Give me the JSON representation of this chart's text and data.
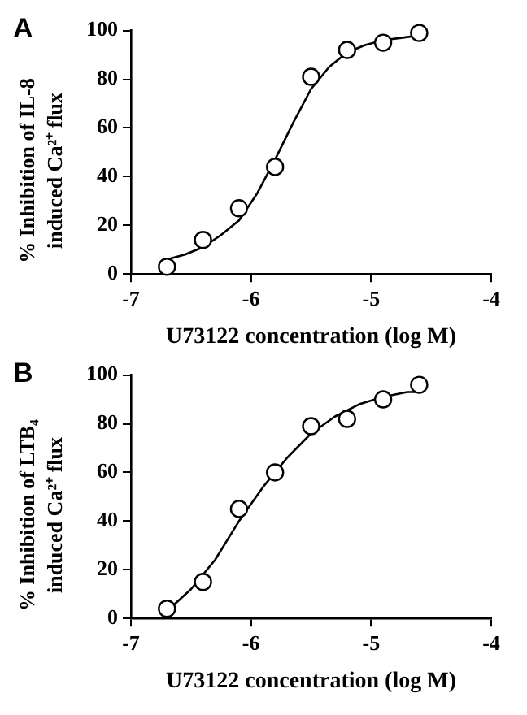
{
  "chart_data": [
    {
      "type": "scatter",
      "title": "A",
      "xlabel": "U73122 concentration (log M)",
      "ylabel": "% Inhibition of IL-8 induced Ca²⁺ flux",
      "xlim": [
        -7,
        -4
      ],
      "xticks": [
        -7,
        -6,
        -5,
        -4
      ],
      "ylim": [
        0,
        100
      ],
      "yticks": [
        0,
        20,
        40,
        60,
        80,
        100
      ],
      "grid": false,
      "legend": false,
      "series": [
        {
          "type": "line",
          "color": "#000000",
          "marker": "none",
          "line_style": "solid",
          "x": [
            -6.7,
            -6.55,
            -6.4,
            -6.25,
            -6.1,
            -5.95,
            -5.8,
            -5.65,
            -5.5,
            -5.35,
            -5.2,
            -5.05,
            -4.9,
            -4.75,
            -4.6
          ],
          "values": [
            6,
            8,
            11,
            16,
            22,
            33,
            47,
            62,
            76,
            85,
            91,
            94,
            96,
            97,
            98
          ]
        },
        {
          "type": "scatter",
          "color": "#000000",
          "marker": "circle",
          "x": [
            -6.7,
            -6.4,
            -6.1,
            -5.8,
            -5.5,
            -5.2,
            -4.9,
            -4.6
          ],
          "values": [
            3,
            14,
            27,
            44,
            81,
            92,
            95,
            99
          ]
        }
      ]
    },
    {
      "type": "scatter",
      "title": "B",
      "xlabel": "U73122 concentration (log M)",
      "ylabel": "% Inhibition of LTB₄ induced Ca²⁺ flux",
      "xlim": [
        -7,
        -4
      ],
      "xticks": [
        -7,
        -6,
        -5,
        -4
      ],
      "ylim": [
        0,
        100
      ],
      "yticks": [
        0,
        20,
        40,
        60,
        80,
        100
      ],
      "grid": false,
      "legend": false,
      "series": [
        {
          "type": "line",
          "color": "#000000",
          "marker": "none",
          "line_style": "solid",
          "x": [
            -6.7,
            -6.5,
            -6.3,
            -6.1,
            -5.9,
            -5.7,
            -5.5,
            -5.3,
            -5.1,
            -4.9,
            -4.7,
            -4.6
          ],
          "values": [
            3,
            12,
            24,
            40,
            54,
            66,
            76,
            83,
            88,
            91,
            93,
            93
          ]
        },
        {
          "type": "scatter",
          "color": "#000000",
          "marker": "circle",
          "x": [
            -6.7,
            -6.4,
            -6.1,
            -5.8,
            -5.5,
            -5.2,
            -4.9,
            -4.6
          ],
          "values": [
            4,
            15,
            45,
            60,
            79,
            82,
            90,
            96
          ]
        }
      ]
    }
  ]
}
